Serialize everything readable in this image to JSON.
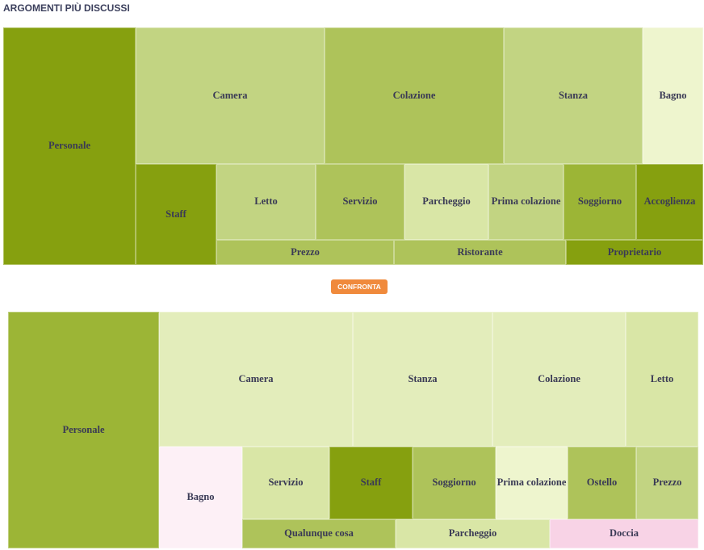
{
  "header": {
    "title": "ARGOMENTI PIÙ DISCUSSI"
  },
  "button": {
    "label": "CONFRONTA"
  },
  "treemaps": [
    {
      "tiles": [
        {
          "label": "Personale",
          "color": "#86a00f"
        },
        {
          "label": "Camera",
          "color": "#c2d482"
        },
        {
          "label": "Colazione",
          "color": "#aec35a"
        },
        {
          "label": "Stanza",
          "color": "#c2d482"
        },
        {
          "label": "Bagno",
          "color": "#eef5ce"
        },
        {
          "label": "Staff",
          "color": "#86a00f"
        },
        {
          "label": "Letto",
          "color": "#c2d482"
        },
        {
          "label": "Servizio",
          "color": "#aec35a"
        },
        {
          "label": "Parcheggio",
          "color": "#d9e6a6"
        },
        {
          "label": "Prima colazione",
          "color": "#c2d482"
        },
        {
          "label": "Soggiorno",
          "color": "#9cb536"
        },
        {
          "label": "Accoglienza",
          "color": "#86a00f"
        },
        {
          "label": "Prezzo",
          "color": "#aec35a"
        },
        {
          "label": "Ristorante",
          "color": "#aec35a"
        },
        {
          "label": "Proprietario",
          "color": "#86a00f"
        }
      ]
    },
    {
      "tiles": [
        {
          "label": "Personale",
          "color": "#9cb536"
        },
        {
          "label": "Camera",
          "color": "#e3edbb"
        },
        {
          "label": "Stanza",
          "color": "#e3edbb"
        },
        {
          "label": "Colazione",
          "color": "#e3edbb"
        },
        {
          "label": "Letto",
          "color": "#d9e6a6"
        },
        {
          "label": "Bagno",
          "color": "#fdf0f6"
        },
        {
          "label": "Servizio",
          "color": "#d9e6a6"
        },
        {
          "label": "Staff",
          "color": "#86a00f"
        },
        {
          "label": "Soggiorno",
          "color": "#aec35a"
        },
        {
          "label": "Prima colazione",
          "color": "#eef5ce"
        },
        {
          "label": "Ostello",
          "color": "#aec35a"
        },
        {
          "label": "Prezzo",
          "color": "#c2d482"
        },
        {
          "label": "Qualunque cosa",
          "color": "#aec35a"
        },
        {
          "label": "Parcheggio",
          "color": "#d9e6a6"
        },
        {
          "label": "Doccia",
          "color": "#f8d3e6"
        }
      ]
    }
  ]
}
